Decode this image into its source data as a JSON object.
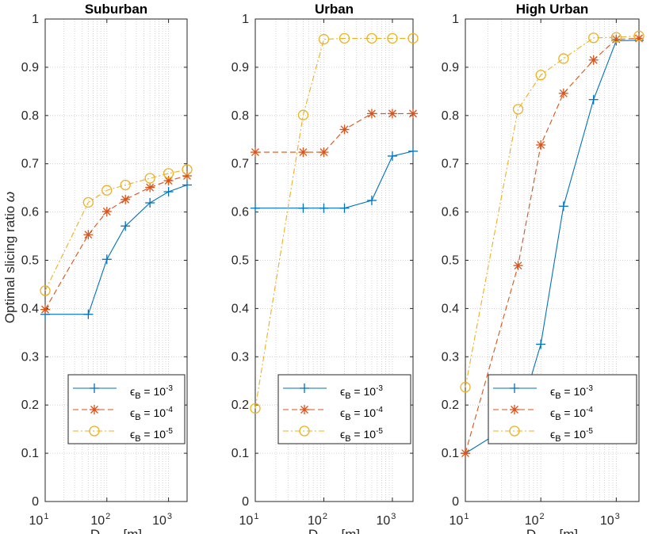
{
  "chart_data": {
    "type": "line",
    "ylabel": "Optimal slicing ratio",
    "ylabel_symbol": "ω",
    "xlabel_main": "D",
    "xlabel_sub": "max",
    "xlabel_unit": "[m]",
    "xscale": "log",
    "xlim": [
      10,
      2000
    ],
    "ylim": [
      0,
      1
    ],
    "yticks": [
      "0",
      "0.1",
      "0.2",
      "0.3",
      "0.4",
      "0.5",
      "0.6",
      "0.7",
      "0.8",
      "0.9",
      "1"
    ],
    "xticks": [
      {
        "base": "10",
        "exp": "1"
      },
      {
        "base": "10",
        "exp": "2"
      },
      {
        "base": "10",
        "exp": "3"
      }
    ],
    "grid": true,
    "series_styles": [
      {
        "color": "#0072BD",
        "marker": "plus",
        "dash": "solid"
      },
      {
        "color": "#D95319",
        "marker": "asterisk",
        "dash": "dashed"
      },
      {
        "color": "#EDB120",
        "marker": "circle",
        "dash": "dashdot"
      }
    ],
    "legend_labels": [
      {
        "eps": "ϵ",
        "sub": "B",
        "eq": " = 10",
        "exp": "-3"
      },
      {
        "eps": "ϵ",
        "sub": "B",
        "eq": " = 10",
        "exp": "-4"
      },
      {
        "eps": "ϵ",
        "sub": "B",
        "eq": " = 10",
        "exp": "-5"
      }
    ],
    "panels": [
      {
        "title": "Suburban",
        "x": [
          10,
          50,
          100,
          200,
          500,
          1000,
          2000
        ],
        "series": [
          {
            "name": "ϵB = 10^-3",
            "values": [
              0.388,
              0.388,
              0.502,
              0.571,
              0.619,
              0.642,
              0.656
            ]
          },
          {
            "name": "ϵB = 10^-4",
            "values": [
              0.398,
              0.553,
              0.601,
              0.626,
              0.651,
              0.665,
              0.675
            ]
          },
          {
            "name": "ϵB = 10^-5",
            "values": [
              0.437,
              0.62,
              0.645,
              0.656,
              0.67,
              0.68,
              0.688
            ]
          }
        ]
      },
      {
        "title": "Urban",
        "x": [
          10,
          50,
          100,
          200,
          500,
          1000,
          2000
        ],
        "series": [
          {
            "name": "ϵB = 10^-3",
            "values": [
              0.608,
              0.608,
              0.608,
              0.608,
              0.624,
              0.716,
              0.726
            ]
          },
          {
            "name": "ϵB = 10^-4",
            "values": [
              0.724,
              0.724,
              0.724,
              0.771,
              0.804,
              0.804,
              0.804
            ]
          },
          {
            "name": "ϵB = 10^-5",
            "values": [
              0.193,
              0.801,
              0.958,
              0.96,
              0.96,
              0.96,
              0.96
            ]
          }
        ]
      },
      {
        "title": "High Urban",
        "x": [
          10,
          50,
          100,
          200,
          500,
          1000,
          2000
        ],
        "series": [
          {
            "name": "ϵB = 10^-3",
            "values": [
              0.1,
              0.168,
              0.326,
              0.612,
              0.833,
              0.955,
              0.956
            ]
          },
          {
            "name": "ϵB = 10^-4",
            "values": [
              0.1,
              0.489,
              0.739,
              0.846,
              0.915,
              0.958,
              0.96
            ]
          },
          {
            "name": "ϵB = 10^-5",
            "values": [
              0.237,
              0.813,
              0.884,
              0.918,
              0.961,
              0.962,
              0.965
            ]
          }
        ]
      }
    ]
  }
}
